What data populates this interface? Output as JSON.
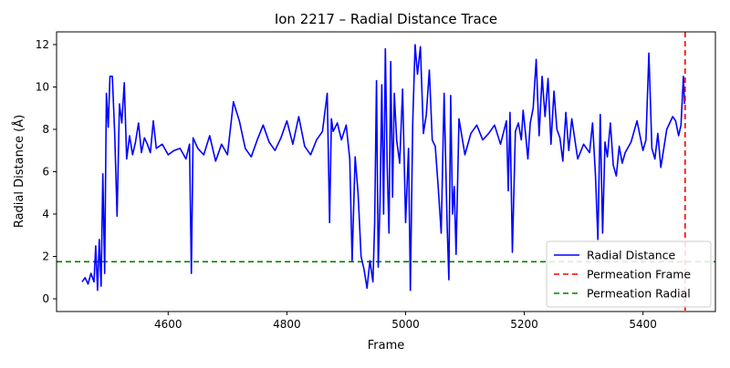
{
  "chart_data": {
    "type": "line",
    "title": "Ion 2217 – Radial Distance Trace",
    "xlabel": "Frame",
    "ylabel": "Radial Distance (Å)",
    "xlim": [
      4412,
      5522
    ],
    "ylim": [
      -0.6,
      12.6
    ],
    "xticks": [
      4600,
      4800,
      5000,
      5200,
      5400
    ],
    "yticks": [
      0,
      2,
      4,
      6,
      8,
      10,
      12
    ],
    "grid": false,
    "legend_position": "bottom-right",
    "series": [
      {
        "name": "Radial Distance",
        "color": "#0000ff",
        "style": "solid",
        "x": [
          4455,
          4460,
          4465,
          4470,
          4475,
          4478,
          4481,
          4484,
          4487,
          4490,
          4493,
          4496,
          4499,
          4502,
          4506,
          4510,
          4514,
          4518,
          4522,
          4526,
          4530,
          4535,
          4540,
          4545,
          4550,
          4555,
          4560,
          4565,
          4570,
          4575,
          4580,
          4590,
          4600,
          4610,
          4620,
          4630,
          4636,
          4639,
          4642,
          4650,
          4660,
          4670,
          4680,
          4690,
          4700,
          4710,
          4720,
          4730,
          4740,
          4750,
          4760,
          4770,
          4780,
          4790,
          4800,
          4810,
          4820,
          4830,
          4840,
          4850,
          4860,
          4868,
          4872,
          4875,
          4878,
          4885,
          4892,
          4900,
          4906,
          4910,
          4915,
          4920,
          4925,
          4930,
          4935,
          4940,
          4945,
          4948,
          4951,
          4954,
          4957,
          4960,
          4963,
          4966,
          4969,
          4972,
          4975,
          4978,
          4981,
          4985,
          4990,
          4995,
          5000,
          5005,
          5008,
          5012,
          5016,
          5020,
          5025,
          5030,
          5035,
          5040,
          5045,
          5050,
          5055,
          5060,
          5065,
          5070,
          5073,
          5076,
          5079,
          5082,
          5085,
          5090,
          5100,
          5110,
          5120,
          5130,
          5140,
          5150,
          5160,
          5170,
          5173,
          5176,
          5180,
          5185,
          5190,
          5195,
          5198,
          5202,
          5206,
          5210,
          5215,
          5220,
          5225,
          5230,
          5235,
          5240,
          5245,
          5250,
          5255,
          5260,
          5265,
          5270,
          5275,
          5280,
          5290,
          5300,
          5310,
          5315,
          5320,
          5324,
          5328,
          5332,
          5336,
          5340,
          5345,
          5350,
          5355,
          5360,
          5365,
          5370,
          5380,
          5390,
          5400,
          5405,
          5410,
          5415,
          5420,
          5425,
          5430,
          5440,
          5450,
          5455,
          5460,
          5464,
          5468,
          5470
        ],
        "y": [
          0.8,
          1.0,
          0.7,
          1.2,
          0.8,
          2.5,
          0.4,
          2.8,
          0.6,
          5.9,
          1.2,
          9.7,
          8.1,
          10.5,
          10.5,
          7.8,
          3.9,
          9.2,
          8.3,
          10.2,
          6.6,
          7.7,
          6.8,
          7.4,
          8.3,
          6.9,
          7.6,
          7.3,
          6.9,
          8.4,
          7.1,
          7.3,
          6.8,
          7.0,
          7.1,
          6.6,
          7.3,
          1.2,
          7.6,
          7.1,
          6.8,
          7.7,
          6.5,
          7.3,
          6.8,
          9.3,
          8.4,
          7.1,
          6.7,
          7.5,
          8.2,
          7.4,
          7.0,
          7.6,
          8.4,
          7.3,
          8.6,
          7.2,
          6.8,
          7.5,
          7.9,
          9.7,
          3.6,
          8.5,
          7.9,
          8.3,
          7.5,
          8.2,
          6.6,
          1.8,
          6.7,
          5.0,
          2.0,
          1.4,
          0.5,
          1.8,
          0.8,
          3.6,
          10.3,
          1.5,
          4.6,
          10.1,
          4.0,
          11.8,
          6.3,
          3.1,
          11.2,
          4.8,
          9.7,
          7.5,
          6.4,
          9.9,
          3.6,
          7.1,
          0.4,
          8.3,
          12.0,
          10.6,
          11.9,
          7.8,
          8.7,
          10.8,
          7.5,
          7.2,
          5.3,
          3.1,
          9.7,
          3.5,
          0.9,
          9.6,
          4.0,
          5.3,
          2.1,
          8.5,
          6.8,
          7.8,
          8.2,
          7.5,
          7.8,
          8.2,
          7.3,
          8.4,
          5.1,
          8.8,
          2.2,
          7.9,
          8.3,
          7.5,
          8.9,
          7.8,
          6.6,
          8.3,
          9.0,
          11.3,
          7.7,
          10.5,
          8.6,
          10.4,
          7.3,
          9.8,
          8.0,
          7.6,
          6.5,
          8.8,
          7.0,
          8.5,
          6.6,
          7.3,
          6.9,
          8.3,
          5.8,
          2.8,
          8.7,
          3.1,
          7.4,
          6.7,
          8.3,
          6.3,
          5.8,
          7.2,
          6.4,
          6.9,
          7.4,
          8.4,
          7.0,
          7.5,
          11.6,
          7.1,
          6.6,
          7.8,
          6.2,
          8.0,
          8.6,
          8.4,
          7.7,
          8.2,
          10.5,
          9.2
        ]
      },
      {
        "name": "Permeation Frame",
        "color": "#ff0000",
        "style": "dashed",
        "x_value": 5471
      },
      {
        "name": "Permeation Radial",
        "color": "#008000",
        "style": "dashed",
        "y_value": 1.75
      }
    ]
  }
}
